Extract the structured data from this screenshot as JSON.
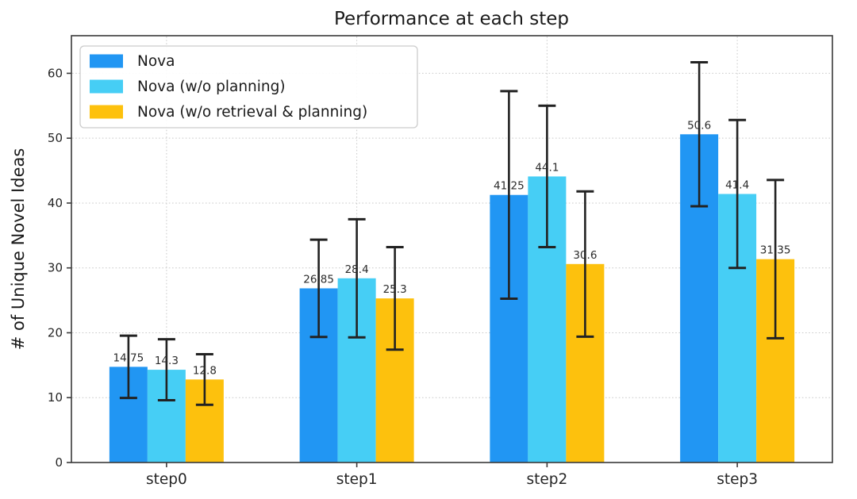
{
  "chart_data": {
    "type": "bar",
    "title": "Performance at each step",
    "xlabel": "",
    "ylabel": "# of Unique Novel Ideas",
    "categories": [
      "step0",
      "step1",
      "step2",
      "step3"
    ],
    "series": [
      {
        "name": "Nova",
        "color": "#2196F3",
        "values": [
          14.75,
          26.85,
          41.25,
          50.6
        ],
        "errors": [
          4.8,
          7.5,
          16.0,
          11.1
        ]
      },
      {
        "name": "Nova (w/o planning)",
        "color": "#46CEF5",
        "values": [
          14.3,
          28.4,
          44.1,
          41.4
        ],
        "errors": [
          4.7,
          9.1,
          10.9,
          11.4
        ]
      },
      {
        "name": "Nova (w/o retrieval & planning)",
        "color": "#FDC10D",
        "values": [
          12.8,
          25.3,
          30.6,
          31.35
        ],
        "errors": [
          3.9,
          7.9,
          11.2,
          12.2
        ]
      }
    ],
    "bar_value_labels": [
      "14.75",
      "14.3",
      "12.8",
      "26.85",
      "28.4",
      "25.3",
      "41.25",
      "44.1",
      "30.6",
      "50.6",
      "41.4",
      "31.35"
    ],
    "ylim": [
      0,
      65.8
    ],
    "yticks": [
      0,
      10,
      20,
      30,
      40,
      50,
      60
    ],
    "grid": {
      "style": "dotted",
      "axes": "both",
      "color": "#c9c9c9"
    },
    "legend": {
      "position": "upper-left",
      "entries": [
        "Nova",
        "Nova (w/o planning)",
        "Nova (w/o retrieval & planning)"
      ]
    },
    "error_bar_color": "#222222",
    "spine_color": "#3a3a3a"
  }
}
